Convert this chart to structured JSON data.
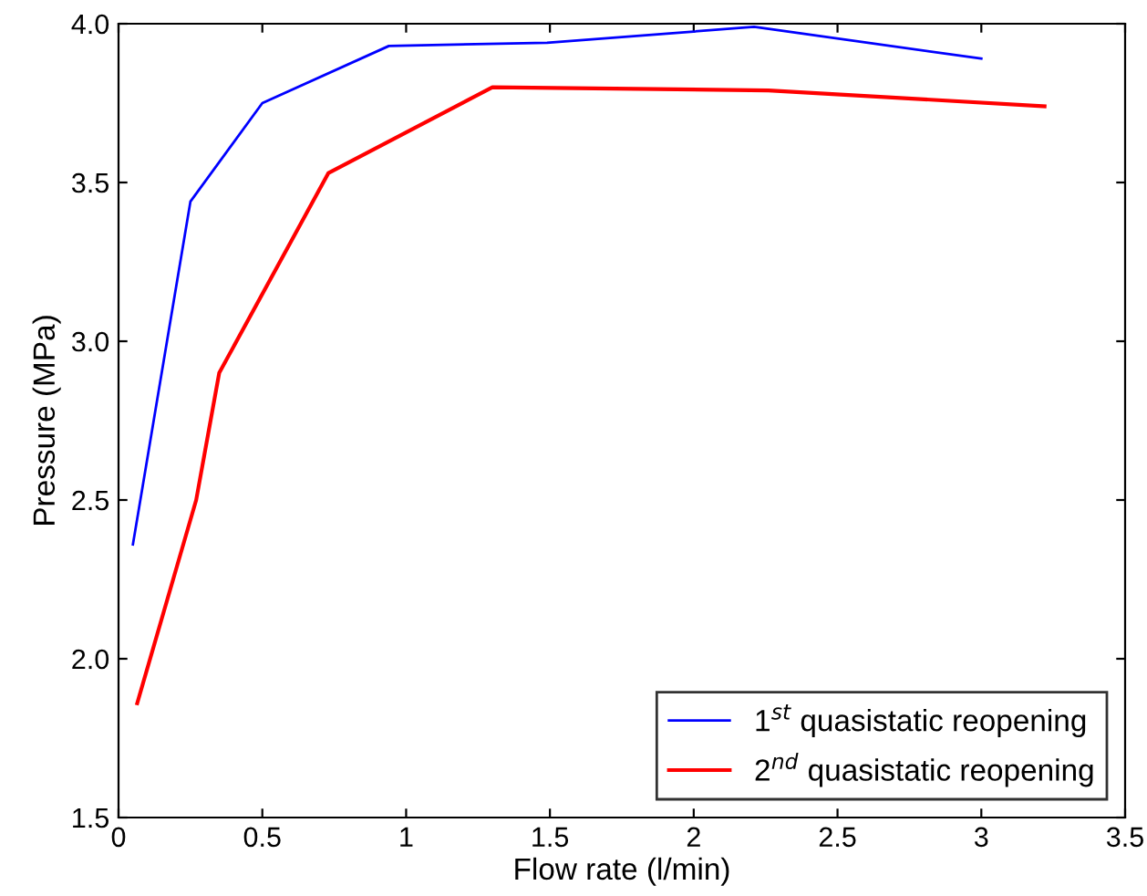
{
  "chart_data": {
    "type": "line",
    "xlabel": "Flow rate (l/min)",
    "ylabel": "Pressure (MPa)",
    "series": [
      {
        "name": "1$^{st}$ quasistatic reopening",
        "color": "#0000ff",
        "x": [
          0.05,
          0.25,
          0.5,
          0.94,
          1.49,
          2.21,
          3.0
        ],
        "values": [
          2.36,
          3.44,
          3.75,
          3.93,
          3.94,
          3.99,
          3.89
        ]
      },
      {
        "name": "2$^{nd}$ quasistatic reopening",
        "color": "#ff0000",
        "x": [
          0.065,
          0.27,
          0.35,
          0.73,
          1.3,
          2.26,
          3.22
        ],
        "values": [
          1.86,
          2.5,
          2.9,
          3.53,
          3.8,
          3.79,
          3.74
        ]
      }
    ],
    "xlim": [
      0,
      3.5
    ],
    "xticks": [
      0,
      0.5,
      1,
      1.5,
      2,
      2.5,
      3,
      3.5
    ],
    "ylim": [
      1.5,
      4.0
    ],
    "yticks": [
      {
        "value": 1.5,
        "label": "1.5"
      },
      {
        "value": 2.0,
        "label": "2.0"
      },
      {
        "value": 2.5,
        "label": "2.5"
      },
      {
        "value": 3.0,
        "label": "3.0"
      },
      {
        "value": 3.5,
        "label": "3.5"
      },
      {
        "value": 4.0,
        "label": "4.0"
      }
    ],
    "grid": false,
    "legend": "bottom right",
    "line_style": "solid",
    "marker": "none"
  }
}
